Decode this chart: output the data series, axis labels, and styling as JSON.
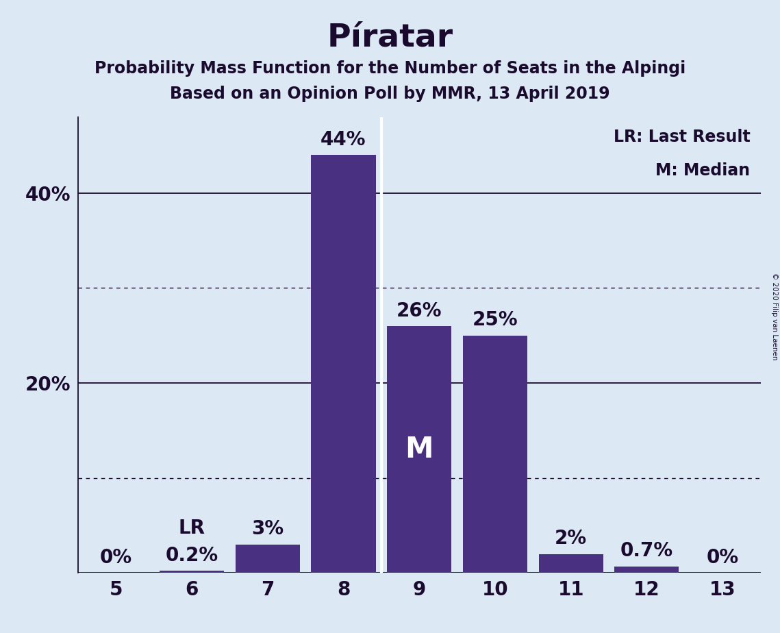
{
  "title": "Píratar",
  "subtitle1": "Probability Mass Function for the Number of Seats in the Alpingi",
  "subtitle2": "Based on an Opinion Poll by MMR, 13 April 2019",
  "copyright": "© 2020 Filip van Laenen",
  "categories": [
    5,
    6,
    7,
    8,
    9,
    10,
    11,
    12,
    13
  ],
  "values": [
    0.0,
    0.2,
    3.0,
    44.0,
    26.0,
    25.0,
    2.0,
    0.7,
    0.0
  ],
  "bar_color": "#4a3080",
  "background_color": "#dce9f5",
  "bar_labels": [
    "0%",
    "0.2%",
    "3%",
    "44%",
    "26%",
    "25%",
    "2%",
    "0.7%",
    "0%"
  ],
  "lr_index": 1,
  "median_label": "M",
  "lr_label": "LR",
  "legend_lr": "LR: Last Result",
  "legend_m": "M: Median",
  "ylim": [
    0,
    48
  ],
  "solid_yticks": [
    0,
    20,
    40
  ],
  "dotted_yticks": [
    10,
    30
  ],
  "title_fontsize": 34,
  "subtitle_fontsize": 17,
  "bar_label_fontsize": 20,
  "axis_tick_fontsize": 20,
  "legend_fontsize": 17,
  "median_line_x": 8.5,
  "text_color": "#1a0a2e"
}
